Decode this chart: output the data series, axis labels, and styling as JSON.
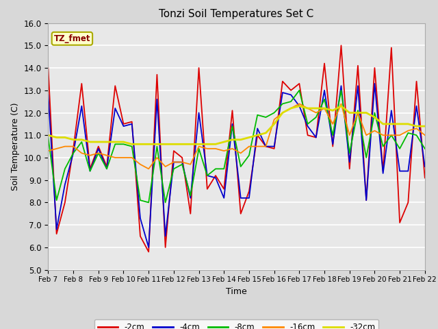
{
  "title": "Tonzi Soil Temperatures Set C",
  "xlabel": "Time",
  "ylabel": "Soil Temperature (C)",
  "ylim": [
    5.0,
    16.0
  ],
  "yticks": [
    5.0,
    6.0,
    7.0,
    8.0,
    9.0,
    10.0,
    11.0,
    12.0,
    13.0,
    14.0,
    15.0,
    16.0
  ],
  "xtick_labels": [
    "Feb 7",
    "Feb 8",
    "Feb 9",
    "Feb 10",
    "Feb 11",
    "Feb 12",
    "Feb 13",
    "Feb 14",
    "Feb 15",
    "Feb 16",
    "Feb 17",
    "Feb 18",
    "Feb 19",
    "Feb 20",
    "Feb 21",
    "Feb 22"
  ],
  "fig_bg": "#d8d8d8",
  "ax_bg": "#e8e8e8",
  "colors": {
    "-2cm": "#dd0000",
    "-4cm": "#0000cc",
    "-8cm": "#00bb00",
    "-16cm": "#ff8800",
    "-32cm": "#dddd00"
  },
  "data_2cm": [
    14.0,
    6.6,
    8.0,
    10.4,
    13.3,
    9.5,
    10.5,
    9.6,
    13.2,
    11.5,
    11.6,
    6.5,
    5.8,
    13.7,
    6.0,
    10.3,
    10.0,
    7.5,
    14.0,
    8.6,
    9.2,
    8.6,
    12.1,
    7.5,
    8.5,
    11.0,
    10.5,
    10.4,
    13.4,
    13.0,
    13.3,
    11.0,
    10.9,
    14.2,
    10.5,
    15.0,
    9.5,
    14.1,
    8.1,
    14.0,
    9.4,
    14.9,
    7.1,
    8.0,
    13.4,
    9.1
  ],
  "data_4cm": [
    12.8,
    6.8,
    8.8,
    10.2,
    12.3,
    9.4,
    10.4,
    9.5,
    12.2,
    11.4,
    11.5,
    7.3,
    6.0,
    12.6,
    6.5,
    9.8,
    9.8,
    8.2,
    12.0,
    9.2,
    9.1,
    8.2,
    11.5,
    8.2,
    8.2,
    11.3,
    10.5,
    10.5,
    12.9,
    12.8,
    12.3,
    11.4,
    10.9,
    13.0,
    10.6,
    13.2,
    9.8,
    13.2,
    8.1,
    13.3,
    9.3,
    12.1,
    9.4,
    9.4,
    12.3,
    9.6
  ],
  "data_8cm": [
    10.9,
    8.1,
    9.5,
    10.2,
    10.7,
    9.4,
    10.2,
    9.5,
    10.6,
    10.6,
    10.5,
    8.1,
    8.0,
    10.5,
    8.0,
    9.5,
    9.7,
    8.3,
    10.4,
    9.2,
    9.5,
    9.5,
    11.4,
    9.6,
    10.1,
    11.9,
    11.8,
    12.0,
    12.4,
    12.5,
    13.0,
    11.5,
    11.8,
    12.6,
    11.0,
    13.0,
    10.2,
    12.1,
    10.0,
    12.0,
    10.5,
    11.0,
    10.4,
    11.1,
    11.0,
    10.4
  ],
  "data_16cm": [
    10.3,
    10.4,
    10.5,
    10.5,
    10.2,
    10.1,
    10.2,
    10.1,
    10.0,
    10.0,
    10.0,
    9.7,
    9.5,
    10.0,
    9.6,
    9.8,
    9.8,
    9.7,
    10.5,
    10.4,
    10.4,
    10.3,
    10.4,
    10.2,
    10.5,
    10.5,
    10.5,
    11.7,
    12.0,
    12.2,
    12.4,
    12.2,
    12.0,
    12.2,
    11.5,
    12.4,
    11.0,
    12.0,
    11.0,
    11.2,
    11.0,
    11.0,
    11.0,
    11.2,
    11.3,
    11.0
  ],
  "data_32cm": [
    11.0,
    10.9,
    10.9,
    10.8,
    10.8,
    10.7,
    10.7,
    10.7,
    10.7,
    10.7,
    10.6,
    10.6,
    10.6,
    10.6,
    10.6,
    10.6,
    10.6,
    10.6,
    10.6,
    10.6,
    10.6,
    10.7,
    10.8,
    10.8,
    10.9,
    11.0,
    11.1,
    11.5,
    12.0,
    12.2,
    12.3,
    12.2,
    12.2,
    12.2,
    12.1,
    12.3,
    12.0,
    12.0,
    12.0,
    11.8,
    11.5,
    11.5,
    11.5,
    11.5,
    11.4,
    11.4
  ]
}
